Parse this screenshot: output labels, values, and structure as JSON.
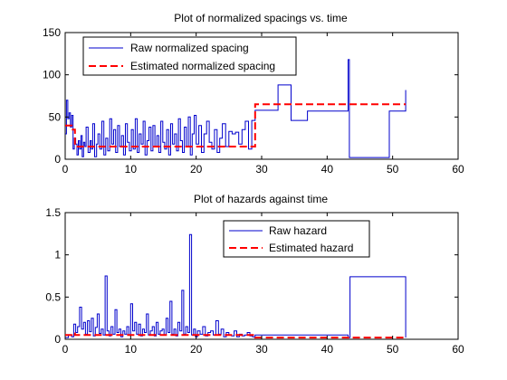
{
  "colors": {
    "raw": "#0000cc",
    "estimated": "#ff0000",
    "axes": "#000000",
    "background": "#ffffff"
  },
  "chart_data": [
    {
      "type": "line",
      "title": "Plot of normalized spacings vs. time",
      "xlim": [
        0,
        60
      ],
      "ylim": [
        0,
        150
      ],
      "xticks": [
        0,
        10,
        20,
        30,
        40,
        50,
        60
      ],
      "yticks": [
        0,
        50,
        100,
        150
      ],
      "legend_position": "top-left",
      "series": [
        {
          "name": "Raw normalized spacing",
          "style": "solid-step",
          "color": "#0000cc",
          "x": [
            0.0,
            0.2,
            0.4,
            0.6,
            0.8,
            1.0,
            1.2,
            1.4,
            1.6,
            1.8,
            2.0,
            2.2,
            2.4,
            2.6,
            2.8,
            3.0,
            3.2,
            3.5,
            3.8,
            4.0,
            4.2,
            4.5,
            4.8,
            5.0,
            5.3,
            5.6,
            5.9,
            6.2,
            6.5,
            6.8,
            7.1,
            7.4,
            7.7,
            8.0,
            8.3,
            8.6,
            8.9,
            9.2,
            9.5,
            9.8,
            10.1,
            10.4,
            10.7,
            11.0,
            11.3,
            11.6,
            11.9,
            12.2,
            12.5,
            12.8,
            13.1,
            13.4,
            13.7,
            14.0,
            14.3,
            14.6,
            14.9,
            15.2,
            15.5,
            15.8,
            16.1,
            16.4,
            16.7,
            17.0,
            17.3,
            17.6,
            17.9,
            18.2,
            18.5,
            18.8,
            19.1,
            19.4,
            19.7,
            20.0,
            20.4,
            20.8,
            21.2,
            21.6,
            22.0,
            22.4,
            22.8,
            23.2,
            23.6,
            24.0,
            24.5,
            25.0,
            25.5,
            26.0,
            26.5,
            27.0,
            27.5,
            28.0,
            28.5,
            29.0,
            32.5,
            34.5,
            37.0,
            43.2,
            43.4,
            49.5,
            52.0
          ],
          "y": [
            30,
            70,
            48,
            55,
            38,
            52,
            12,
            25,
            18,
            5,
            22,
            12,
            28,
            3,
            20,
            15,
            38,
            8,
            22,
            12,
            42,
            3,
            18,
            30,
            12,
            45,
            5,
            25,
            10,
            48,
            18,
            35,
            8,
            40,
            15,
            28,
            5,
            42,
            20,
            10,
            35,
            12,
            48,
            8,
            30,
            18,
            45,
            5,
            22,
            38,
            10,
            40,
            15,
            28,
            8,
            45,
            20,
            12,
            35,
            5,
            42,
            18,
            30,
            10,
            48,
            22,
            8,
            38,
            15,
            50,
            5,
            30,
            52,
            18,
            40,
            8,
            30,
            45,
            20,
            12,
            35,
            8,
            25,
            42,
            15,
            33,
            30,
            32,
            18,
            35,
            45,
            12,
            46,
            58,
            88,
            46,
            57,
            118,
            2,
            57,
            82
          ]
        },
        {
          "name": "Estimated normalized spacing",
          "style": "dashed-step",
          "color": "#ff0000",
          "x": [
            0.0,
            1.0,
            1.5,
            29.0,
            52.0
          ],
          "y": [
            40,
            35,
            15,
            65,
            65
          ]
        }
      ]
    },
    {
      "type": "line",
      "title": "Plot of hazards against time",
      "xlim": [
        0,
        60
      ],
      "ylim": [
        0,
        1.5
      ],
      "xticks": [
        0,
        10,
        20,
        30,
        40,
        50,
        60
      ],
      "yticks": [
        0,
        0.5,
        1,
        1.5
      ],
      "legend_position": "top-center",
      "series": [
        {
          "name": "Raw hazard",
          "style": "solid-step",
          "color": "#0000cc",
          "x": [
            0.0,
            0.5,
            1.0,
            1.3,
            1.6,
            1.9,
            2.2,
            2.5,
            2.8,
            3.1,
            3.4,
            3.7,
            4.0,
            4.3,
            4.6,
            4.9,
            5.2,
            5.5,
            5.8,
            6.1,
            6.4,
            6.7,
            7.0,
            7.3,
            7.6,
            7.9,
            8.2,
            8.5,
            8.8,
            9.1,
            9.4,
            9.7,
            10.0,
            10.3,
            10.6,
            10.9,
            11.2,
            11.5,
            11.8,
            12.1,
            12.4,
            12.7,
            13.0,
            13.3,
            13.6,
            13.9,
            14.2,
            14.5,
            14.8,
            15.1,
            15.4,
            15.7,
            16.0,
            16.3,
            16.6,
            16.9,
            17.2,
            17.5,
            17.8,
            18.1,
            18.4,
            18.7,
            19.0,
            19.3,
            19.6,
            19.9,
            20.2,
            20.6,
            21.0,
            21.4,
            21.8,
            22.2,
            22.6,
            23.0,
            23.4,
            23.8,
            24.2,
            24.6,
            25.0,
            25.4,
            25.8,
            26.2,
            26.6,
            27.0,
            27.4,
            27.8,
            28.2,
            28.6,
            29.0,
            43.2,
            43.5,
            52.0
          ],
          "y": [
            0.02,
            0.05,
            0.03,
            0.18,
            0.08,
            0.15,
            0.38,
            0.12,
            0.2,
            0.06,
            0.22,
            0.09,
            0.25,
            0.04,
            0.14,
            0.3,
            0.07,
            0.12,
            0.05,
            0.75,
            0.1,
            0.04,
            0.15,
            0.06,
            0.35,
            0.08,
            0.12,
            0.03,
            0.1,
            0.06,
            0.15,
            0.05,
            0.42,
            0.1,
            0.2,
            0.06,
            0.18,
            0.04,
            0.12,
            0.08,
            0.3,
            0.05,
            0.1,
            0.15,
            0.04,
            0.2,
            0.06,
            0.1,
            0.12,
            0.05,
            0.25,
            0.08,
            0.45,
            0.06,
            0.12,
            0.04,
            0.2,
            0.1,
            0.58,
            0.06,
            0.15,
            0.08,
            1.24,
            0.05,
            0.12,
            0.03,
            0.1,
            0.06,
            0.15,
            0.04,
            0.08,
            0.1,
            0.05,
            0.22,
            0.06,
            0.12,
            0.03,
            0.08,
            0.05,
            0.04,
            0.1,
            0.03,
            0.06,
            0.04,
            0.05,
            0.08,
            0.04,
            0.03,
            0.05,
            0.02,
            0.74,
            0.02
          ]
        },
        {
          "name": "Estimated hazard",
          "style": "dashed-step",
          "color": "#ff0000",
          "x": [
            0.0,
            1.0,
            1.5,
            29.0,
            52.0
          ],
          "y": [
            0.05,
            0.07,
            0.05,
            0.02,
            0.02
          ]
        }
      ]
    }
  ]
}
